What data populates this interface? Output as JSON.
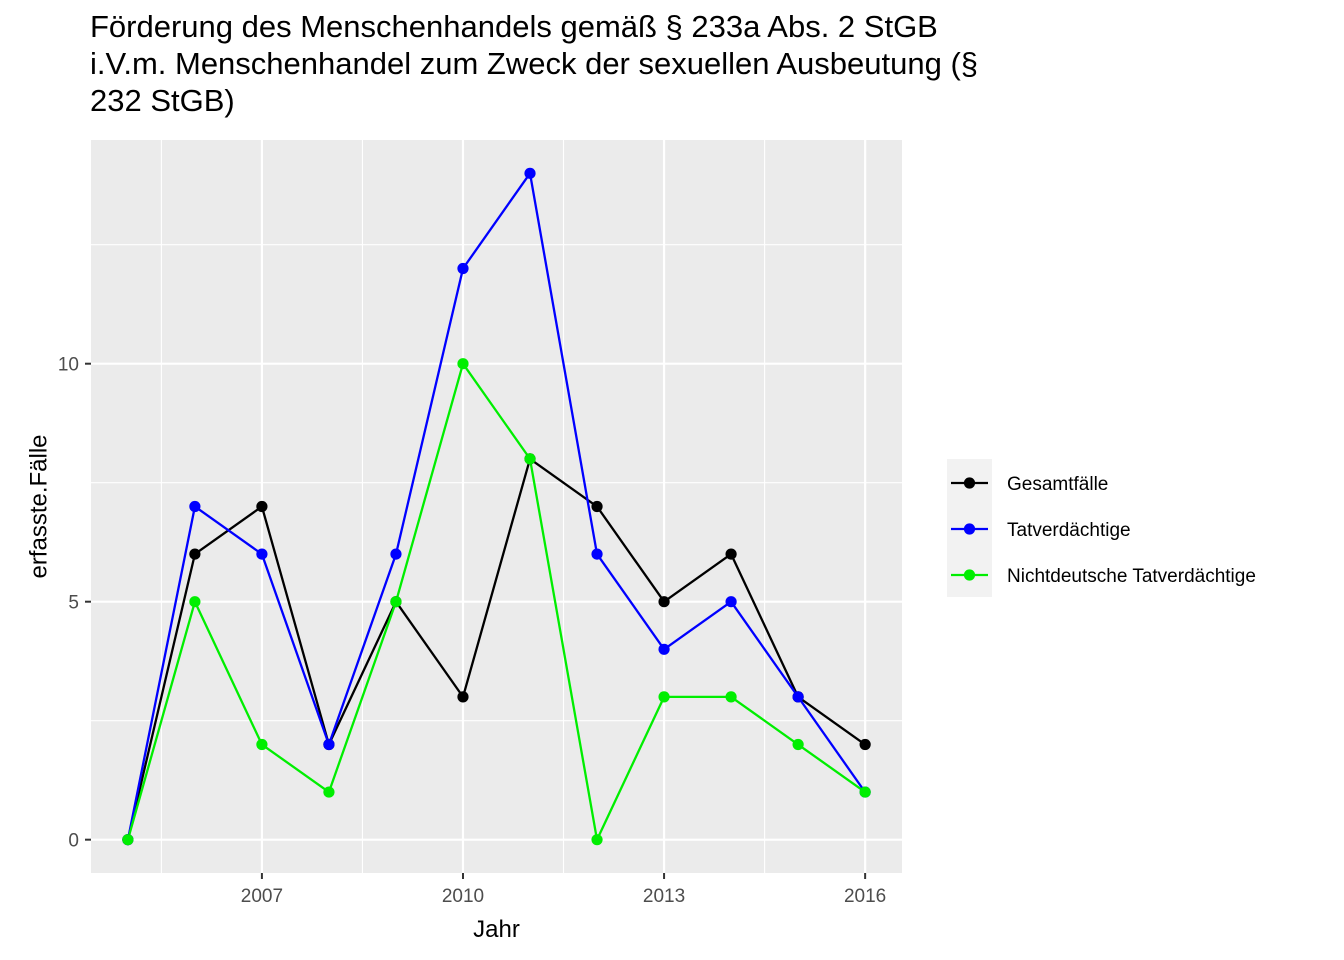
{
  "chart_data": {
    "type": "line",
    "title_lines": [
      "Förderung des Menschenhandels gemäß § 233a Abs. 2 StGB",
      "i.V.m. Menschenhandel zum Zweck der sexuellen Ausbeutung (§",
      "232 StGB)"
    ],
    "xlabel": "Jahr",
    "ylabel": "erfasste.Fälle",
    "x": [
      2005,
      2006,
      2007,
      2008,
      2009,
      2010,
      2011,
      2012,
      2013,
      2014,
      2015,
      2016
    ],
    "xlim": [
      2004.45,
      2016.55
    ],
    "ylim": [
      -0.7,
      14.7
    ],
    "x_ticks": [
      2007,
      2010,
      2013,
      2016
    ],
    "y_ticks": [
      0,
      5,
      10
    ],
    "grid": true,
    "legend_position": "right",
    "series": [
      {
        "name": "Gesamtfälle",
        "color": "#000000",
        "values": [
          0,
          6,
          7,
          2,
          5,
          3,
          8,
          7,
          5,
          6,
          3,
          2
        ]
      },
      {
        "name": "Tatverdächtige",
        "color": "#0000ff",
        "values": [
          0,
          7,
          6,
          2,
          6,
          12,
          14,
          6,
          4,
          5,
          3,
          1
        ]
      },
      {
        "name": "Nichtdeutsche Tatverdächtige",
        "color": "#00ee00",
        "values": [
          0,
          5,
          2,
          1,
          5,
          10,
          8,
          0,
          3,
          3,
          2,
          1
        ]
      }
    ]
  }
}
